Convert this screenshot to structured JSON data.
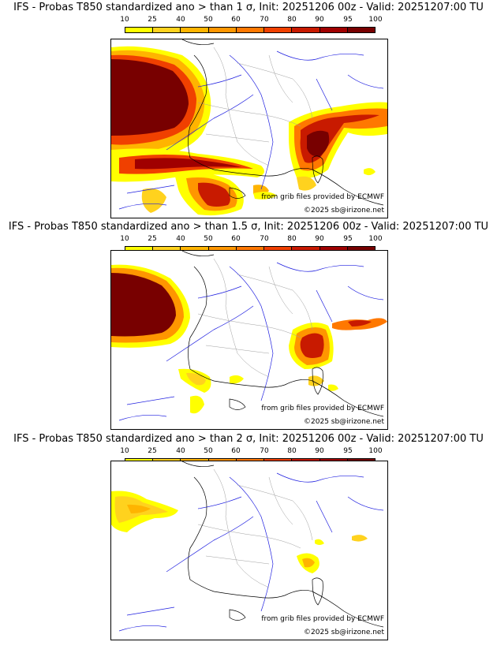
{
  "legend": {
    "labels": [
      "10",
      "25",
      "40",
      "50",
      "60",
      "70",
      "80",
      "90",
      "95",
      "100"
    ],
    "colors": [
      "#ffff00",
      "#ffd21e",
      "#ffb400",
      "#ff9600",
      "#ff7800",
      "#f04000",
      "#c81a00",
      "#a00000",
      "#780000"
    ]
  },
  "panels": [
    {
      "title": "IFS - Probas T850  standardized ano > than 1 σ, Init: 20251206 00z - Valid: 20251207:00 TU",
      "credit_source": "from grib files provided by ECMWF",
      "credit_copyright": "©2025 sb@irizone.net"
    },
    {
      "title": "IFS - Probas T850  standardized ano > than 1.5 σ, Init: 20251206 00z - Valid: 20251207:00 TU",
      "credit_source": "from grib files provided by ECMWF",
      "credit_copyright": "©2025 sb@irizone.net"
    },
    {
      "title": "IFS - Probas T850  standardized ano > than 2 σ, Init: 20251206 00z - Valid: 20251207:00 TU",
      "credit_source": "from grib files provided by ECMWF",
      "credit_copyright": "©2025 sb@irizone.net"
    }
  ],
  "colors": {
    "coast": "#000000",
    "borders": "#a0a0a0",
    "rivers": "#1f1fe0"
  }
}
